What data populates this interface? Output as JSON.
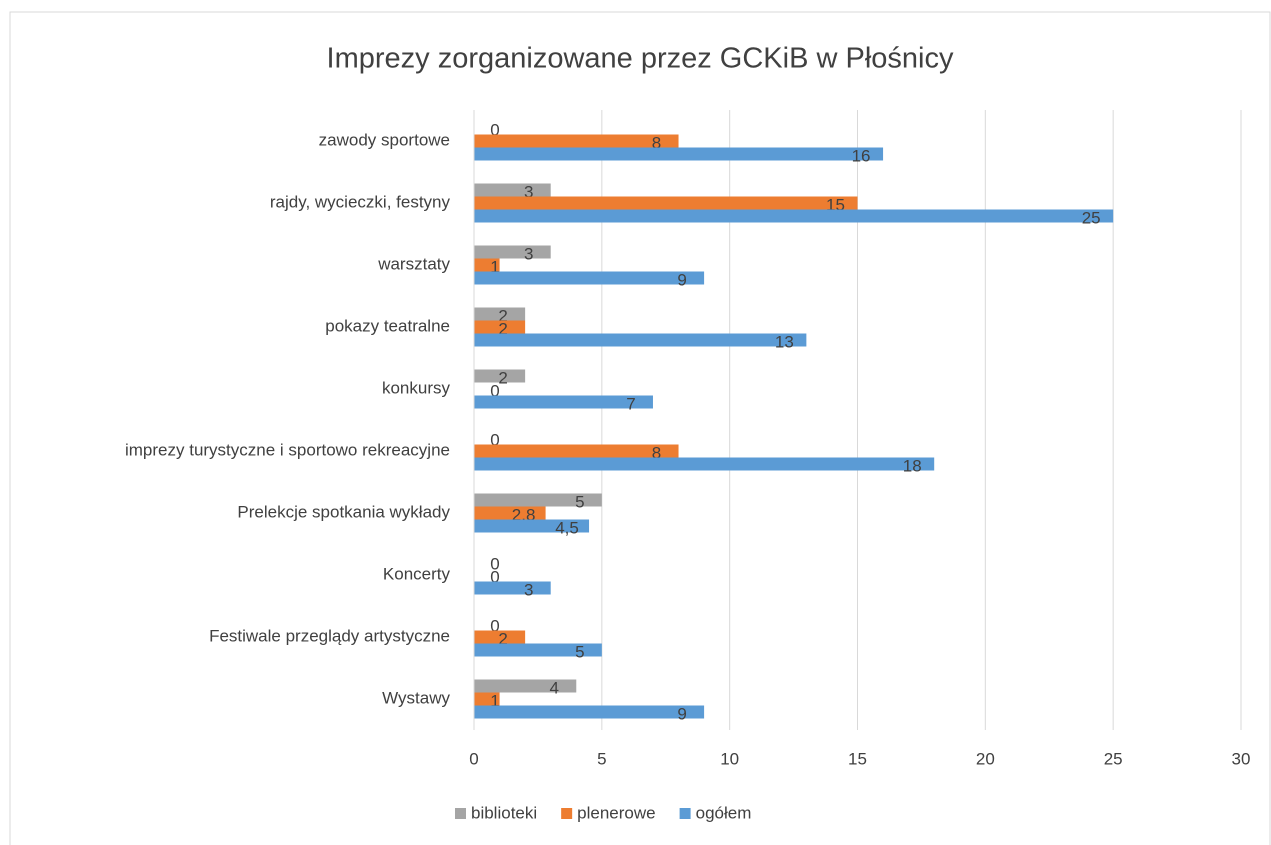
{
  "chart_data": {
    "type": "hbar",
    "title": "Imprezy zorganizowane przez GCKiB w Płośnicy",
    "categories": [
      "zawody sportowe",
      "rajdy, wycieczki, festyny",
      "warsztaty",
      "pokazy teatralne",
      "konkursy",
      "imprezy turystyczne i sportowo rekreacyjne",
      "Prelekcje spotkania wykłady",
      "Koncerty",
      "Festiwale przeglądy artystyczne",
      "Wystawy"
    ],
    "series": [
      {
        "name": "biblioteki",
        "color": "#a5a5a5",
        "values": [
          0,
          3,
          3,
          2,
          2,
          0,
          5,
          0,
          0,
          4
        ]
      },
      {
        "name": "plenerowe",
        "color": "#ed7d31",
        "values": [
          8,
          15,
          1,
          2,
          0,
          8,
          2.8,
          0,
          2,
          1
        ],
        "value_labels": [
          "8",
          "15",
          "1",
          "2",
          "0",
          "8",
          "2,8",
          "0",
          "2",
          "1"
        ]
      },
      {
        "name": "ogółem",
        "color": "#5b9bd5",
        "values": [
          16,
          25,
          9,
          13,
          7,
          18,
          4.5,
          3,
          5,
          9
        ],
        "value_labels": [
          "16",
          "25",
          "9",
          "13",
          "7",
          "18",
          "4,5",
          "3",
          "5",
          "9"
        ]
      }
    ],
    "xlim": [
      0,
      30
    ],
    "xticks": [
      0,
      5,
      10,
      15,
      20,
      25,
      30
    ],
    "grid": true,
    "legend": "bottom"
  }
}
